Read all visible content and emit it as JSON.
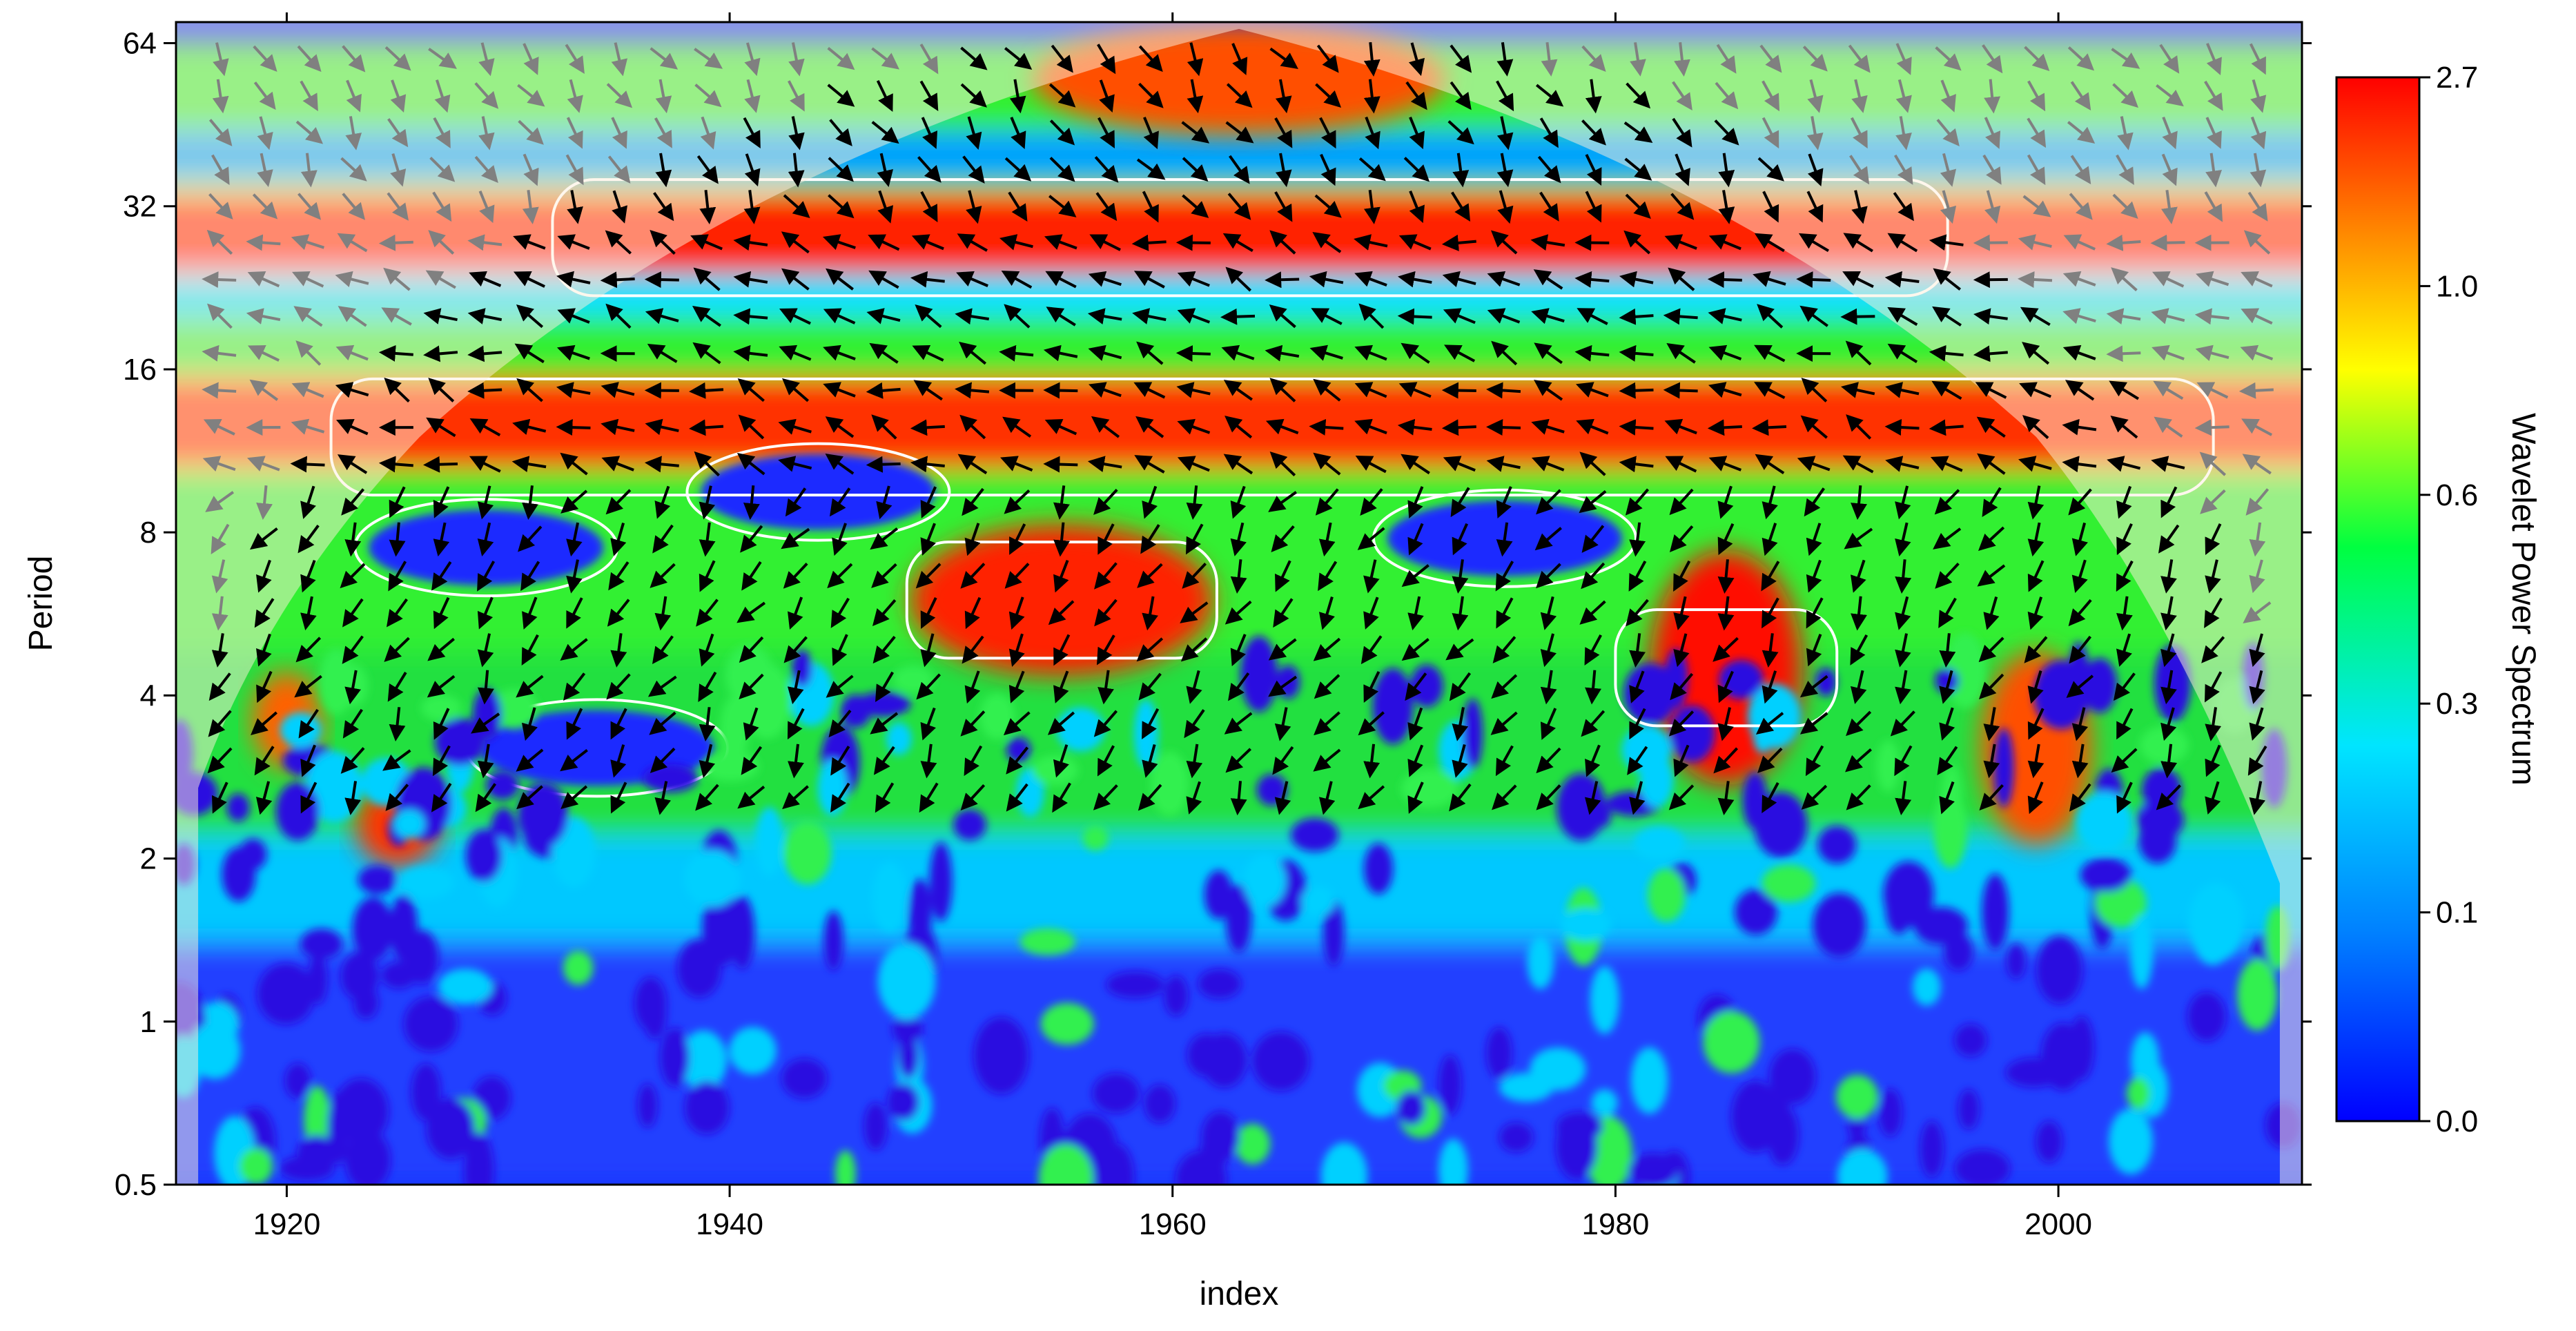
{
  "chart_data": {
    "type": "heatmap",
    "title": "",
    "xlabel": "index",
    "ylabel": "Period",
    "xlim": [
      1915,
      2011
    ],
    "ylim": [
      0.5,
      70
    ],
    "y_scale": "log2",
    "x_ticks": [
      1920,
      1940,
      1960,
      1980,
      2000
    ],
    "y_ticks": [
      {
        "value": 0.5,
        "label": "0.5"
      },
      {
        "value": 1,
        "label": "1"
      },
      {
        "value": 2,
        "label": "2"
      },
      {
        "value": 4,
        "label": "4"
      },
      {
        "value": 8,
        "label": "8"
      },
      {
        "value": 16,
        "label": "16"
      },
      {
        "value": 32,
        "label": "32"
      },
      {
        "value": 64,
        "label": "64"
      }
    ],
    "colorbar": {
      "label": "Wavelet Power Spectrum",
      "ticks": [
        "0.0",
        "0.1",
        "0.3",
        "0.6",
        "1.0",
        "2.7"
      ],
      "colors": [
        "#0000ff",
        "#0080ff",
        "#00e5ff",
        "#00ff40",
        "#ffff00",
        "#ff8000",
        "#ff0000"
      ]
    },
    "high_power_bands": [
      {
        "period": 28,
        "x_from": 1932,
        "x_to": 1995,
        "level": "high"
      },
      {
        "period": 12,
        "x_from": 1922,
        "x_to": 2007,
        "level": "high"
      },
      {
        "period": 6,
        "x_from": 1948,
        "x_to": 1962,
        "level": "high"
      },
      {
        "period": 4.5,
        "x_from": 1980,
        "x_to": 1990,
        "level": "high"
      }
    ],
    "low_power_regions": [
      {
        "x": 1929,
        "period": 7.5,
        "level": "low"
      },
      {
        "x": 1944,
        "period": 9.5,
        "level": "low"
      },
      {
        "x": 1975,
        "period": 7.8,
        "level": "low"
      },
      {
        "x": 1934,
        "period": 3.2,
        "level": "low"
      }
    ],
    "cone_of_influence": "shaded outside",
    "significance_contours": "white",
    "phase_arrows": "black inside cone, gray outside"
  }
}
